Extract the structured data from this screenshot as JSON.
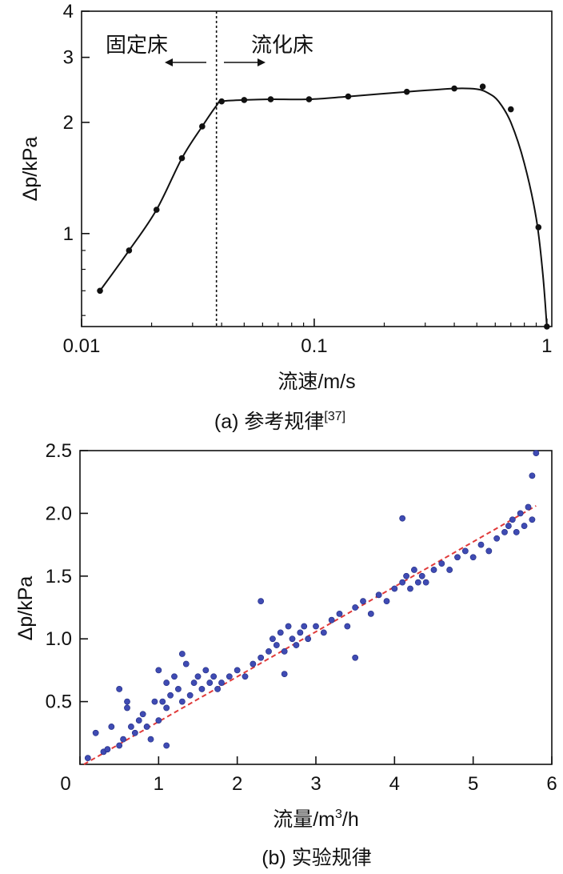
{
  "chart_data": [
    {
      "type": "line",
      "x_scale": "log",
      "y_scale": "log",
      "xlabel": "流速/m/s",
      "ylabel": "Δp/kPa",
      "caption": "(a) 参考规律",
      "caption_ref": "[37]",
      "xlim": [
        0.01,
        1.05
      ],
      "ylim": [
        0.56,
        4
      ],
      "x_ticks": [
        {
          "value": 0.01,
          "label": "0.01"
        },
        {
          "value": 0.1,
          "label": "0.1"
        },
        {
          "value": 1,
          "label": "1"
        }
      ],
      "y_ticks": [
        {
          "value": 1,
          "label": "1"
        },
        {
          "value": 2,
          "label": "2"
        },
        {
          "value": 3,
          "label": "3"
        },
        {
          "value": 4,
          "label": "4"
        }
      ],
      "vline_x": 0.038,
      "annotations": {
        "left": "固定床",
        "right": "流化床"
      },
      "points": {
        "x": [
          0.012,
          0.016,
          0.021,
          0.027,
          0.033,
          0.04,
          0.05,
          0.065,
          0.095,
          0.14,
          0.25,
          0.4,
          0.53,
          0.7,
          0.92,
          1.0
        ],
        "y": [
          0.7,
          0.9,
          1.16,
          1.6,
          1.95,
          2.28,
          2.3,
          2.31,
          2.31,
          2.35,
          2.42,
          2.47,
          2.5,
          2.17,
          1.04,
          0.56
        ]
      },
      "curve": {
        "x": [
          0.012,
          0.016,
          0.021,
          0.027,
          0.033,
          0.038,
          0.04,
          0.05,
          0.065,
          0.095,
          0.14,
          0.25,
          0.4,
          0.5,
          0.56,
          0.62,
          0.7,
          0.8,
          0.9,
          0.96,
          1.0
        ],
        "y": [
          0.7,
          0.9,
          1.16,
          1.6,
          1.95,
          2.22,
          2.28,
          2.3,
          2.31,
          2.31,
          2.35,
          2.42,
          2.47,
          2.46,
          2.4,
          2.28,
          2.0,
          1.55,
          1.1,
          0.78,
          0.56
        ]
      },
      "line_color": "#111111",
      "marker_color": "#111111"
    },
    {
      "type": "scatter",
      "xlabel_main": "流量/m",
      "xlabel_sup": "3",
      "xlabel_tail": "/h",
      "ylabel": "Δp/kPa",
      "caption": "(b) 实验规律",
      "xlim": [
        0,
        6
      ],
      "ylim": [
        0,
        2.5
      ],
      "x_ticks": [
        0,
        1,
        2,
        3,
        4,
        5,
        6
      ],
      "y_ticks": [
        {
          "value": 0.5,
          "label": "0.5"
        },
        {
          "value": 1.0,
          "label": "1.0"
        },
        {
          "value": 1.5,
          "label": "1.5"
        },
        {
          "value": 2.0,
          "label": "2.0"
        },
        {
          "value": 2.5,
          "label": "2.5"
        }
      ],
      "marker_color": "#3f4bb3",
      "fit_color": "#e03a3a",
      "fit_line": {
        "x": [
          0.05,
          5.8
        ],
        "y": [
          0.0,
          2.06
        ]
      },
      "points": {
        "x": [
          0.1,
          0.2,
          0.3,
          0.35,
          0.4,
          0.5,
          0.55,
          0.6,
          0.65,
          0.7,
          0.75,
          0.8,
          0.85,
          0.9,
          0.95,
          1.0,
          1.0,
          1.05,
          1.1,
          1.1,
          1.15,
          1.2,
          1.25,
          1.3,
          1.35,
          1.4,
          1.45,
          1.5,
          1.55,
          1.6,
          1.65,
          1.7,
          1.75,
          1.8,
          1.9,
          2.0,
          2.1,
          2.2,
          2.3,
          2.4,
          2.45,
          2.5,
          2.55,
          2.6,
          2.65,
          2.7,
          2.75,
          2.8,
          2.85,
          2.9,
          3.0,
          3.1,
          3.2,
          3.3,
          3.4,
          3.5,
          3.6,
          3.7,
          3.8,
          3.9,
          4.0,
          4.1,
          4.15,
          4.2,
          4.25,
          4.3,
          4.35,
          4.4,
          4.5,
          4.6,
          4.7,
          4.8,
          4.9,
          5.0,
          5.1,
          5.2,
          5.3,
          5.4,
          5.45,
          5.5,
          5.55,
          5.6,
          5.65,
          5.7,
          5.75,
          5.8,
          0.5,
          1.3,
          2.3,
          4.1,
          5.75,
          0.6,
          1.1,
          2.6,
          3.5
        ],
        "y": [
          0.05,
          0.25,
          0.1,
          0.12,
          0.3,
          0.15,
          0.2,
          0.45,
          0.3,
          0.25,
          0.35,
          0.4,
          0.3,
          0.2,
          0.5,
          0.35,
          0.75,
          0.5,
          0.45,
          0.65,
          0.55,
          0.7,
          0.6,
          0.5,
          0.8,
          0.55,
          0.65,
          0.7,
          0.6,
          0.75,
          0.65,
          0.7,
          0.6,
          0.65,
          0.7,
          0.75,
          0.7,
          0.8,
          0.85,
          0.9,
          1.0,
          0.95,
          1.05,
          0.9,
          1.1,
          1.0,
          0.95,
          1.05,
          1.1,
          1.0,
          1.1,
          1.05,
          1.15,
          1.2,
          1.1,
          1.25,
          1.3,
          1.2,
          1.35,
          1.3,
          1.4,
          1.45,
          1.5,
          1.4,
          1.55,
          1.45,
          1.5,
          1.45,
          1.55,
          1.6,
          1.55,
          1.65,
          1.7,
          1.65,
          1.75,
          1.7,
          1.8,
          1.85,
          1.9,
          1.95,
          1.85,
          2.0,
          1.9,
          2.05,
          1.95,
          2.48,
          0.6,
          0.88,
          1.3,
          1.96,
          2.3,
          0.5,
          0.15,
          0.72,
          0.85
        ]
      }
    }
  ]
}
